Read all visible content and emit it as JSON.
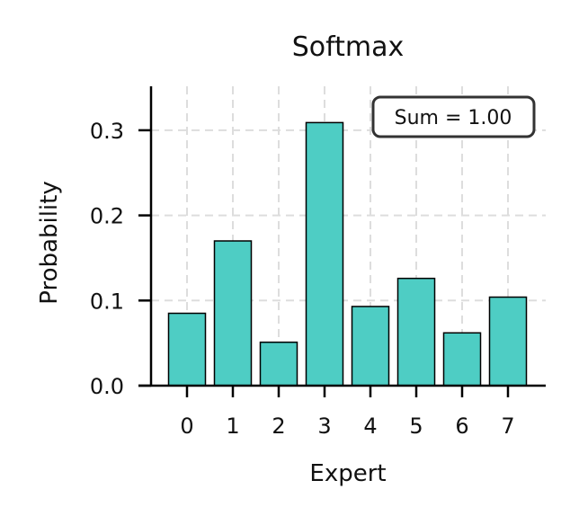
{
  "chart_data": {
    "type": "bar",
    "title": "Softmax",
    "xlabel": "Expert",
    "ylabel": "Probability",
    "categories": [
      "0",
      "1",
      "2",
      "3",
      "4",
      "5",
      "6",
      "7"
    ],
    "values": [
      0.085,
      0.17,
      0.051,
      0.309,
      0.093,
      0.126,
      0.062,
      0.104
    ],
    "ylim": [
      0,
      0.35
    ],
    "yticks": [
      0.0,
      0.1,
      0.2,
      0.3
    ],
    "ytick_labels": [
      "0.0",
      "0.1",
      "0.2",
      "0.3"
    ],
    "grid": true,
    "annotation": "Sum = 1.00",
    "bar_color": "#4ecdc4",
    "edge_color": "#000000"
  }
}
